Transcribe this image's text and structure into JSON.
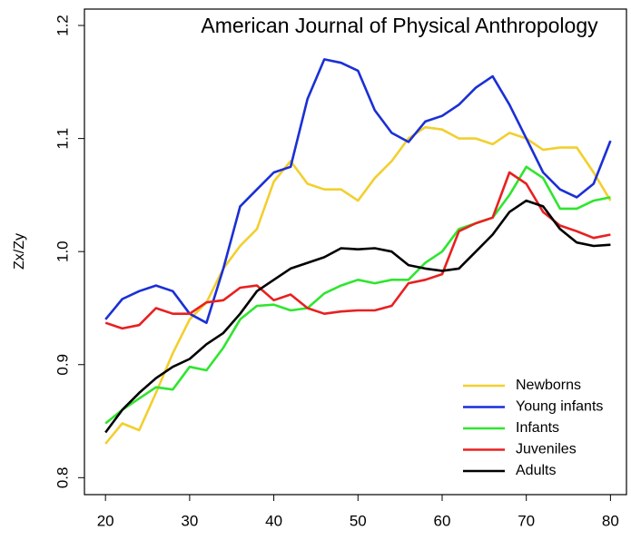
{
  "chart_data": {
    "type": "line",
    "annotation": "American Journal of Physical Anthropology",
    "y_label": "Zx/Zy",
    "x": [
      20,
      22,
      24,
      26,
      28,
      30,
      32,
      34,
      36,
      38,
      40,
      42,
      44,
      46,
      48,
      50,
      52,
      54,
      56,
      58,
      60,
      62,
      64,
      66,
      68,
      70,
      72,
      74,
      76,
      78,
      80
    ],
    "series": [
      {
        "name": "Newborns",
        "color": "#f2cf2e",
        "values": [
          0.83,
          0.848,
          0.842,
          0.875,
          0.91,
          0.94,
          0.955,
          0.985,
          1.005,
          1.02,
          1.062,
          1.08,
          1.06,
          1.055,
          1.055,
          1.045,
          1.065,
          1.08,
          1.1,
          1.11,
          1.108,
          1.1,
          1.1,
          1.095,
          1.105,
          1.1,
          1.09,
          1.092,
          1.092,
          1.07,
          1.045
        ]
      },
      {
        "name": "Young infants",
        "color": "#1a2fd6",
        "values": [
          0.94,
          0.958,
          0.965,
          0.97,
          0.965,
          0.945,
          0.937,
          0.985,
          1.04,
          1.055,
          1.07,
          1.075,
          1.135,
          1.17,
          1.167,
          1.16,
          1.125,
          1.105,
          1.097,
          1.115,
          1.12,
          1.13,
          1.145,
          1.155,
          1.13,
          1.1,
          1.07,
          1.055,
          1.048,
          1.06,
          1.098
        ]
      },
      {
        "name": "Infants",
        "color": "#2ee62e",
        "values": [
          0.848,
          0.86,
          0.87,
          0.88,
          0.878,
          0.898,
          0.895,
          0.915,
          0.94,
          0.952,
          0.953,
          0.948,
          0.95,
          0.963,
          0.97,
          0.975,
          0.972,
          0.975,
          0.975,
          0.99,
          1.0,
          1.02,
          1.025,
          1.03,
          1.05,
          1.075,
          1.065,
          1.038,
          1.038,
          1.045,
          1.048
        ]
      },
      {
        "name": "Juveniles",
        "color": "#e82020",
        "values": [
          0.937,
          0.932,
          0.935,
          0.95,
          0.945,
          0.945,
          0.955,
          0.957,
          0.968,
          0.97,
          0.957,
          0.962,
          0.95,
          0.945,
          0.947,
          0.948,
          0.948,
          0.952,
          0.972,
          0.975,
          0.98,
          1.018,
          1.025,
          1.03,
          1.07,
          1.06,
          1.035,
          1.023,
          1.018,
          1.012,
          1.015
        ]
      },
      {
        "name": "Adults",
        "color": "#000000",
        "values": [
          0.84,
          0.86,
          0.875,
          0.888,
          0.898,
          0.905,
          0.918,
          0.928,
          0.945,
          0.965,
          0.975,
          0.985,
          0.99,
          0.995,
          1.003,
          1.002,
          1.003,
          1.0,
          0.988,
          0.985,
          0.983,
          0.985,
          1.0,
          1.015,
          1.035,
          1.045,
          1.04,
          1.02,
          1.008,
          1.005,
          1.006
        ]
      }
    ],
    "xlim": [
      17.5,
      81.9
    ],
    "ylim": [
      0.785,
      1.2145
    ],
    "xticks": [
      20,
      30,
      40,
      50,
      60,
      70,
      80
    ],
    "yticks": [
      0.8,
      0.9,
      {
        "value": 1,
        "label": "1.0"
      },
      1.1,
      1.2
    ],
    "legend": "lower right",
    "grid": false
  }
}
